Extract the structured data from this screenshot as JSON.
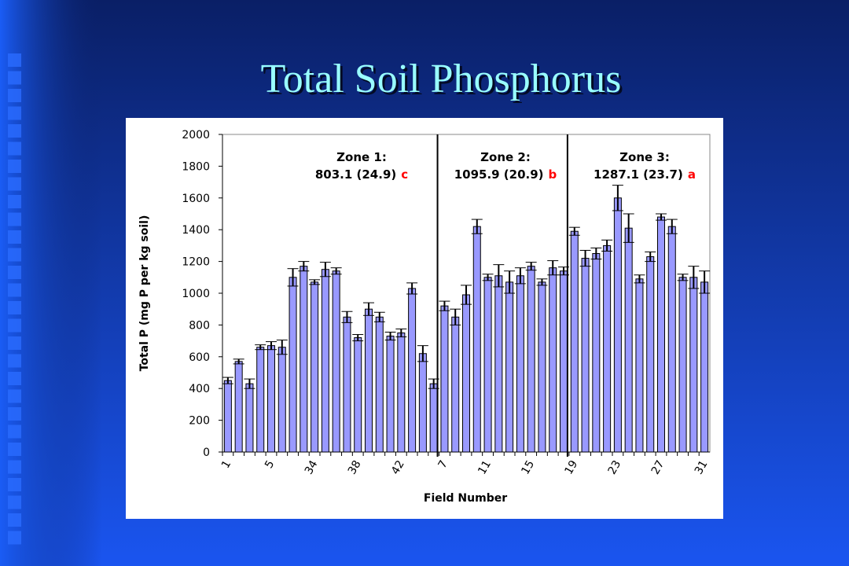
{
  "title": "Total Soil Phosphorus",
  "chart_data": {
    "type": "bar",
    "ylabel": "Total P (mg P per kg soil)",
    "xlabel": "Field Number",
    "categories": [
      "1",
      null,
      null,
      null,
      "5",
      null,
      null,
      null,
      "34",
      null,
      null,
      null,
      "38",
      null,
      null,
      null,
      "42",
      null,
      null,
      null,
      "7",
      null,
      null,
      null,
      "11",
      null,
      null,
      null,
      "15",
      null,
      null,
      null,
      "19",
      null,
      null,
      null,
      "23",
      null,
      null,
      null,
      "27",
      null,
      null,
      null,
      "31"
    ],
    "values": [
      450,
      570,
      430,
      660,
      670,
      660,
      1100,
      1170,
      1070,
      1150,
      1140,
      850,
      720,
      900,
      850,
      730,
      750,
      1030,
      620,
      430,
      920,
      850,
      990,
      1420,
      1100,
      1110,
      1070,
      1110,
      1170,
      1070,
      1160,
      1140,
      1390,
      1220,
      1250,
      1300,
      1600,
      1410,
      1090,
      1230,
      1480,
      1420,
      1100,
      1100,
      1070
    ],
    "errors": [
      20,
      15,
      30,
      15,
      25,
      45,
      55,
      30,
      15,
      45,
      20,
      35,
      20,
      40,
      30,
      25,
      25,
      35,
      50,
      30,
      30,
      50,
      60,
      45,
      20,
      70,
      70,
      50,
      25,
      20,
      45,
      25,
      25,
      50,
      35,
      35,
      80,
      90,
      25,
      30,
      20,
      45,
      20,
      70,
      70
    ],
    "color": "#9999ff",
    "ylim": [
      0,
      2000
    ],
    "yticks": [
      0,
      200,
      400,
      600,
      800,
      1000,
      1200,
      1400,
      1600,
      1800,
      2000
    ],
    "zones": [
      {
        "title": "Zone 1:",
        "stat": "803.1 (24.9)",
        "letter": "c"
      },
      {
        "title": "Zone 2:",
        "stat": "1095.9 (20.9)",
        "letter": "b"
      },
      {
        "title": "Zone 3:",
        "stat": "1287.1 (23.7)",
        "letter": "a"
      }
    ]
  }
}
